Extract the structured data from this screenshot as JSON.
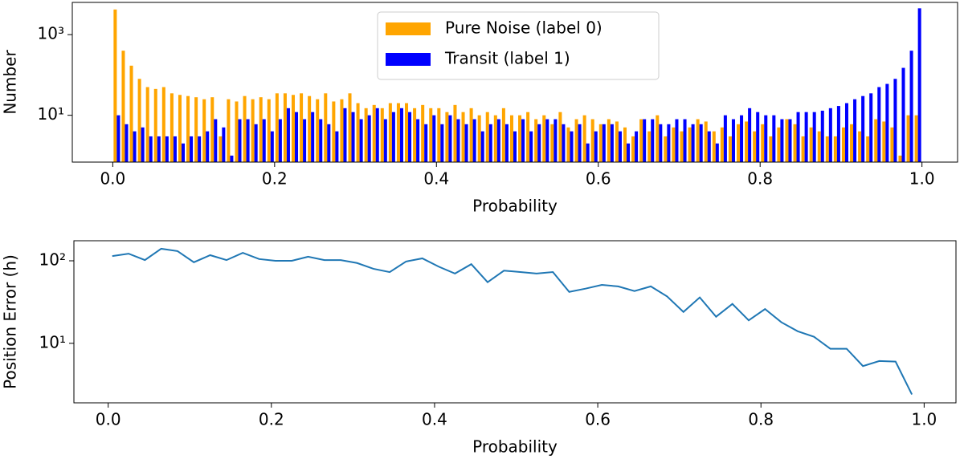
{
  "chart_data": [
    {
      "type": "histogram",
      "xlabel": "Probability",
      "ylabel": "Number",
      "log_y": true,
      "legend": "upper center",
      "bins": [
        0,
        0.01,
        0.02,
        0.03,
        0.04,
        0.05,
        0.06,
        0.07,
        0.08,
        0.09,
        0.1,
        0.11,
        0.12,
        0.13,
        0.14,
        0.15,
        0.16,
        0.17,
        0.18,
        0.19,
        0.2,
        0.21,
        0.22,
        0.23,
        0.24,
        0.25,
        0.26,
        0.27,
        0.28,
        0.29,
        0.3,
        0.31,
        0.32,
        0.33,
        0.34,
        0.35,
        0.36,
        0.37,
        0.38,
        0.39,
        0.4,
        0.41,
        0.42,
        0.43,
        0.44,
        0.45,
        0.46,
        0.47,
        0.48,
        0.49,
        0.5,
        0.51,
        0.52,
        0.53,
        0.54,
        0.55,
        0.56,
        0.57,
        0.58,
        0.59,
        0.6,
        0.61,
        0.62,
        0.63,
        0.64,
        0.65,
        0.66,
        0.67,
        0.68,
        0.69,
        0.7,
        0.71,
        0.72,
        0.73,
        0.74,
        0.75,
        0.76,
        0.77,
        0.78,
        0.79,
        0.8,
        0.81,
        0.82,
        0.83,
        0.84,
        0.85,
        0.86,
        0.87,
        0.88,
        0.89,
        0.9,
        0.91,
        0.92,
        0.93,
        0.94,
        0.95,
        0.96,
        0.97,
        0.98,
        0.99,
        1
      ],
      "series": [
        {
          "name": "Pure Noise (label 0)",
          "color": "#ffa500",
          "values": [
            4200,
            400,
            170,
            80,
            50,
            45,
            50,
            35,
            32,
            30,
            28,
            25,
            28,
            3,
            25,
            22,
            30,
            25,
            28,
            25,
            35,
            35,
            32,
            35,
            30,
            25,
            35,
            22,
            25,
            35,
            20,
            15,
            18,
            15,
            20,
            20,
            20,
            15,
            18,
            15,
            15,
            12,
            18,
            12,
            15,
            10,
            12,
            10,
            15,
            10,
            10,
            12,
            8,
            10,
            6,
            12,
            5,
            8,
            10,
            8,
            6,
            8,
            7,
            5,
            3,
            8,
            4,
            10,
            3,
            5,
            4,
            5,
            8,
            7,
            4,
            5,
            3,
            6,
            7,
            4,
            6,
            3,
            5,
            8,
            6,
            3,
            5,
            4,
            3,
            3,
            5,
            6,
            4,
            3,
            8,
            7,
            5,
            1,
            10,
            10
          ]
        },
        {
          "name": "Transit (label 1)",
          "color": "#0000ff",
          "values": [
            10,
            6,
            4,
            5,
            3,
            3,
            3,
            3,
            2,
            3,
            3,
            4,
            8,
            5,
            1,
            8,
            8,
            6,
            8,
            4,
            8,
            15,
            12,
            8,
            12,
            8,
            6,
            4,
            15,
            12,
            8,
            10,
            15,
            8,
            12,
            15,
            12,
            8,
            6,
            10,
            6,
            10,
            8,
            6,
            8,
            4,
            6,
            8,
            6,
            4,
            8,
            4,
            6,
            8,
            8,
            6,
            4,
            6,
            2,
            4,
            6,
            6,
            4,
            2,
            4,
            8,
            8,
            6,
            6,
            8,
            8,
            6,
            6,
            4,
            2,
            10,
            8,
            10,
            15,
            12,
            10,
            10,
            8,
            8,
            12,
            12,
            12,
            13,
            15,
            17,
            20,
            25,
            30,
            35,
            50,
            60,
            80,
            150,
            400,
            4500
          ]
        }
      ],
      "xlim": [
        -0.05,
        1.044
      ],
      "xticks": [
        {
          "value": 0,
          "label": "0.0"
        },
        0.2,
        0.4,
        0.6,
        0.8,
        {
          "value": 1,
          "label": "1.0"
        }
      ],
      "ylim": [
        0.69,
        6300
      ],
      "yticks": [
        {
          "value": 10,
          "label": "10¹"
        },
        {
          "value": 1000,
          "label": "10³"
        }
      ]
    },
    {
      "type": "line",
      "xlabel": "Probability",
      "ylabel": "Position Error (h)",
      "log_y": true,
      "color": "#1f77b4",
      "x": [
        0.005,
        0.025,
        0.045,
        0.065,
        0.085,
        0.105,
        0.125,
        0.145,
        0.165,
        0.185,
        0.205,
        0.225,
        0.245,
        0.265,
        0.285,
        0.305,
        0.325,
        0.345,
        0.365,
        0.385,
        0.405,
        0.425,
        0.445,
        0.465,
        0.485,
        0.505,
        0.525,
        0.545,
        0.565,
        0.585,
        0.605,
        0.625,
        0.645,
        0.665,
        0.685,
        0.705,
        0.725,
        0.745,
        0.765,
        0.785,
        0.805,
        0.825,
        0.845,
        0.865,
        0.885,
        0.905,
        0.925,
        0.945,
        0.965,
        0.985
      ],
      "values": [
        114,
        122,
        102,
        140,
        131,
        96,
        117,
        102,
        125,
        105,
        100,
        100,
        112,
        102,
        102,
        94,
        80,
        73,
        98,
        107,
        85,
        70,
        91,
        55,
        76,
        73,
        70,
        73,
        42,
        46,
        51,
        49,
        43,
        49,
        37,
        24,
        36,
        21,
        30,
        19,
        26,
        18,
        14,
        12,
        8.6,
        8.6,
        5.3,
        6.1,
        6,
        2.4
      ],
      "xlim": [
        -0.042,
        1.039
      ],
      "xticks": [
        {
          "value": 0,
          "label": "0.0"
        },
        0.2,
        0.4,
        0.6,
        0.8,
        {
          "value": 1,
          "label": "1.0"
        }
      ],
      "ylim": [
        1.9,
        175
      ],
      "yticks": [
        {
          "value": 10,
          "label": "10¹"
        },
        {
          "value": 100,
          "label": "10²"
        }
      ]
    }
  ]
}
